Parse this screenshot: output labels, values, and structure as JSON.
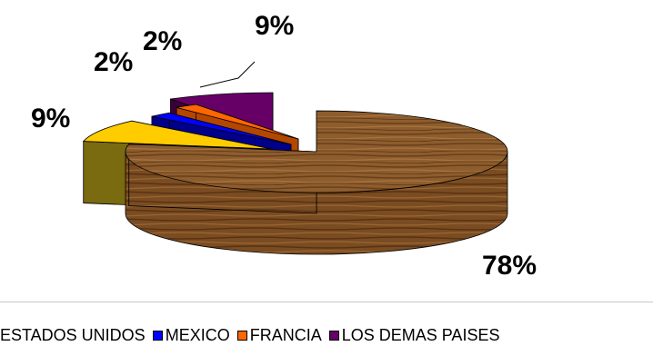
{
  "chart_data": {
    "type": "pie",
    "title": "",
    "categories": [
      "ESTADOS UNIDOS",
      "MEXICO",
      "FRANCIA",
      "LOS DEMAS PAISES"
    ],
    "slices": [
      {
        "name": "",
        "value": 78,
        "label": "78%",
        "color": "#8a5a2b"
      },
      {
        "name": "",
        "value": 9,
        "label": "9%",
        "color": "#ffcc00"
      },
      {
        "name": "MEXICO",
        "value": 2,
        "label": "2%",
        "color": "#0000ff"
      },
      {
        "name": "FRANCIA",
        "value": 2,
        "label": "2%",
        "color": "#ff6600"
      },
      {
        "name": "LOS DEMAS PAISES",
        "value": 9,
        "label": "9%",
        "color": "#660066"
      }
    ],
    "legend": {
      "position": "bottom",
      "entries": [
        {
          "label": "ESTADOS UNIDOS",
          "color": "",
          "swatch": false
        },
        {
          "label": "MEXICO",
          "color": "#0000ff",
          "swatch": true
        },
        {
          "label": "FRANCIA",
          "color": "#ff6600",
          "swatch": true
        },
        {
          "label": "LOS DEMAS PAISES",
          "color": "#660066",
          "swatch": true
        }
      ]
    }
  }
}
